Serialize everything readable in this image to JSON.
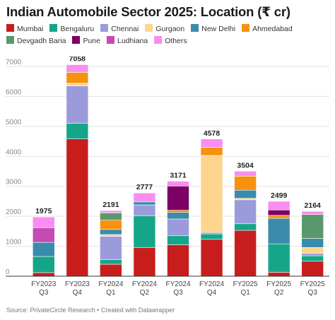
{
  "chart_data": {
    "type": "bar",
    "stacked": true,
    "title": "Indian Automobile Sector 2025: Location (₹ cr)",
    "source": "Source: PrivateCircle Research • Created with Datawrapper",
    "categories": [
      [
        "FY2023",
        "Q3"
      ],
      [
        "FY2023",
        "Q4"
      ],
      [
        "FY2024",
        "Q1"
      ],
      [
        "FY2024",
        "Q2"
      ],
      [
        "FY2024",
        "Q3"
      ],
      [
        "FY2024",
        "Q4"
      ],
      [
        "FY2025",
        "Q1"
      ],
      [
        "FY2025",
        "Q2"
      ],
      [
        "FY2025",
        "Q3"
      ]
    ],
    "totals": [
      1975,
      7058,
      2191,
      2777,
      3171,
      4578,
      3504,
      2499,
      2164
    ],
    "ylim": [
      0,
      7000
    ],
    "yticks": [
      0,
      1000,
      2000,
      3000,
      4000,
      5000,
      6000,
      7000
    ],
    "grid": true,
    "legend_position": "top",
    "series": [
      {
        "name": "Mumbai",
        "color": "#c71e1d",
        "values": [
          120,
          4580,
          400,
          950,
          1050,
          1230,
          1530,
          130,
          500
        ]
      },
      {
        "name": "Bengaluru",
        "color": "#15a68a",
        "values": [
          540,
          520,
          150,
          1060,
          300,
          180,
          220,
          950,
          180
        ]
      },
      {
        "name": "Chennai",
        "color": "#9b9bdb",
        "values": [
          0,
          1250,
          780,
          370,
          560,
          50,
          800,
          0,
          80
        ]
      },
      {
        "name": "Gurgaon",
        "color": "#fdd58c",
        "values": [
          0,
          90,
          60,
          0,
          0,
          2570,
          50,
          0,
          200
        ]
      },
      {
        "name": "New Delhi",
        "color": "#3b8bad",
        "values": [
          470,
          0,
          170,
          100,
          220,
          0,
          270,
          850,
          300
        ]
      },
      {
        "name": "Ahmedabad",
        "color": "#f6920b",
        "values": [
          0,
          360,
          310,
          0,
          70,
          270,
          470,
          100,
          0
        ]
      },
      {
        "name": "Devgadh Baria",
        "color": "#59986b",
        "values": [
          0,
          0,
          240,
          0,
          0,
          0,
          0,
          0,
          800
        ]
      },
      {
        "name": "Pune",
        "color": "#7d0064",
        "values": [
          0,
          0,
          0,
          0,
          810,
          0,
          0,
          180,
          0
        ]
      },
      {
        "name": "Ludhiana",
        "color": "#c54bb3",
        "values": [
          490,
          0,
          31,
          0,
          0,
          0,
          0,
          0,
          0
        ]
      },
      {
        "name": "Others",
        "color": "#fa8df0",
        "values": [
          355,
          258,
          50,
          297,
          161,
          278,
          164,
          289,
          104
        ]
      }
    ]
  }
}
